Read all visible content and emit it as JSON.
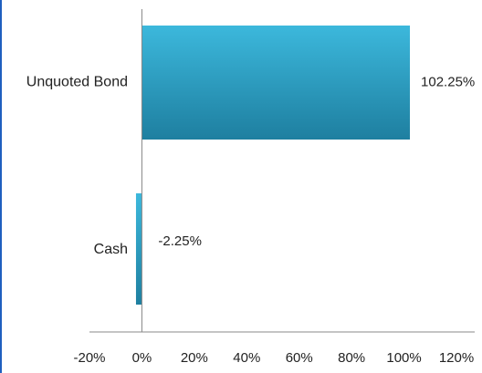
{
  "chart_data": {
    "type": "bar",
    "orientation": "horizontal",
    "title": "",
    "xlabel": "",
    "ylabel": "",
    "categories": [
      "Unquoted Bond",
      "Cash"
    ],
    "values": [
      102.25,
      -2.25
    ],
    "data_labels": [
      "102.25%",
      "-2.25%"
    ],
    "xlim": [
      -20,
      120
    ],
    "x_ticks": [
      -20,
      0,
      20,
      40,
      60,
      80,
      100,
      120
    ],
    "x_tick_labels": [
      "-20%",
      "0%",
      "20%",
      "40%",
      "60%",
      "80%",
      "100%",
      "120%"
    ],
    "grid": false,
    "legend": "none",
    "colors": {
      "bar_top": "#3cb8dc",
      "bar_bottom": "#1e7fa0",
      "axis": "#888888",
      "frame_left": "#1f5fbf"
    }
  }
}
